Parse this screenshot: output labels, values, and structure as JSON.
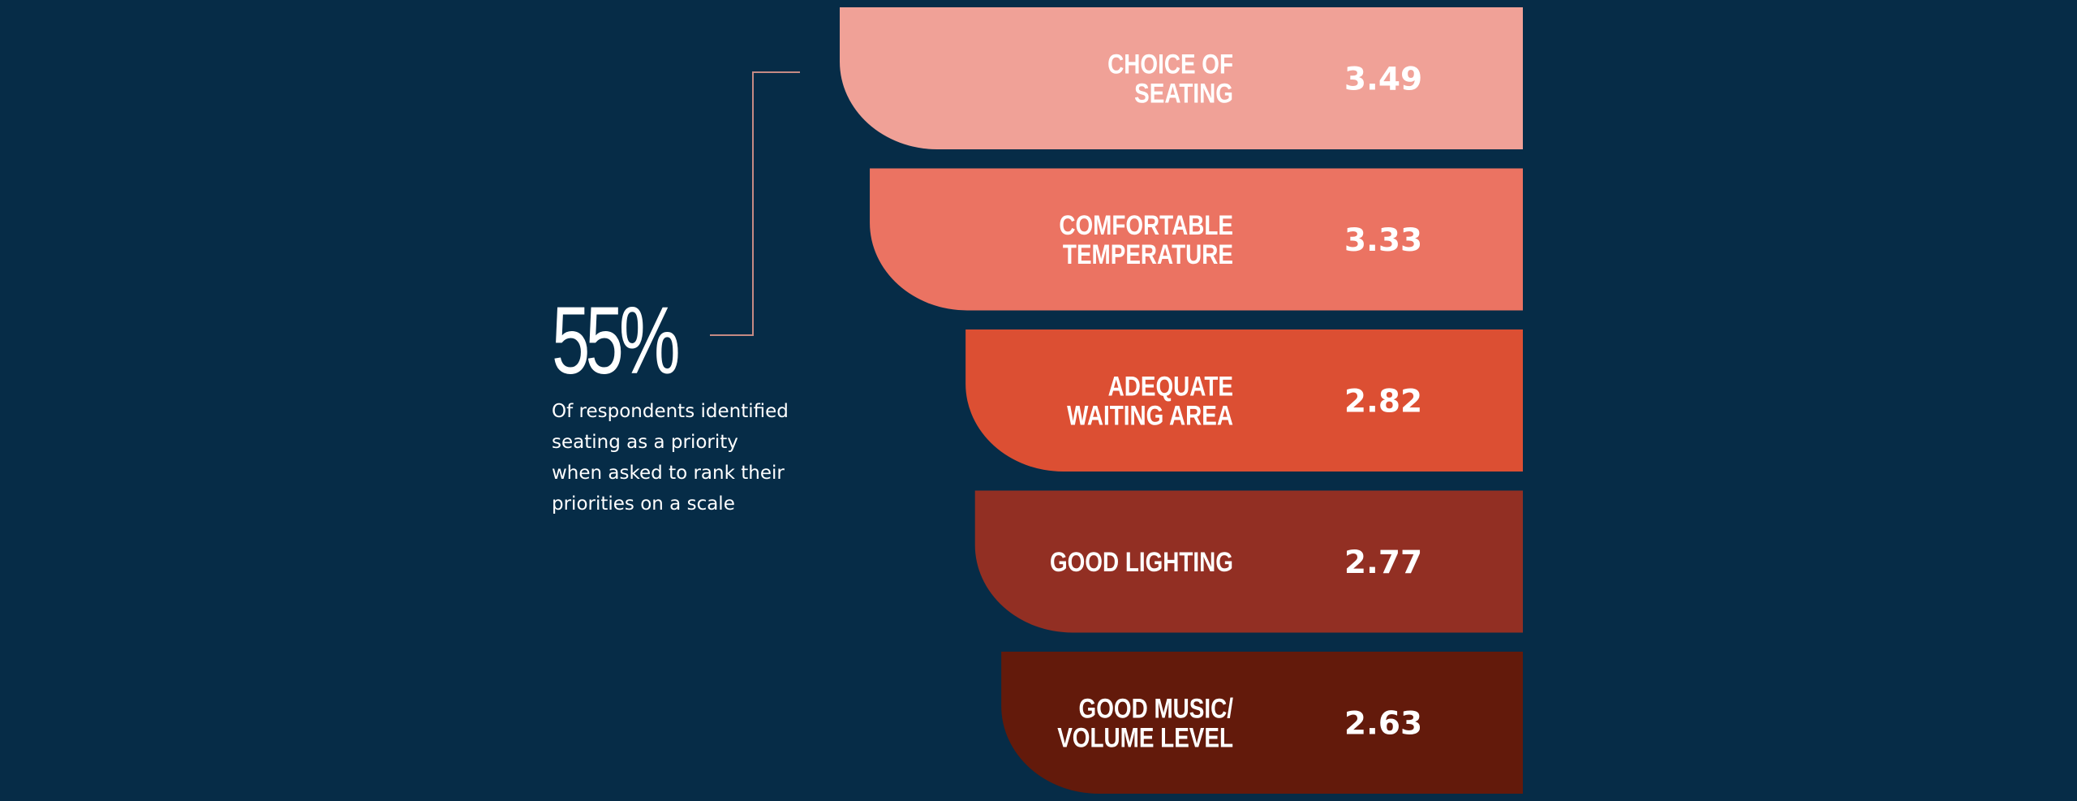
{
  "colors": {
    "background": "#062c47",
    "connector": "#c58a84"
  },
  "callout": {
    "percent": "55%",
    "caption_lines": [
      "Of respondents identified",
      "seating as a priority",
      "when asked to rank their",
      "priorities on a scale"
    ]
  },
  "chart_data": {
    "type": "bar",
    "categories": [
      [
        "CHOICE OF",
        "SEATING"
      ],
      [
        "COMFORTABLE",
        "TEMPERATURE"
      ],
      [
        "ADEQUATE",
        "WAITING AREA"
      ],
      [
        "GOOD LIGHTING"
      ],
      [
        "GOOD MUSIC/",
        "VOLUME LEVEL"
      ]
    ],
    "values": [
      3.49,
      3.33,
      2.82,
      2.77,
      2.63
    ],
    "value_labels": [
      "3.49",
      "3.33",
      "2.82",
      "2.77",
      "2.63"
    ],
    "colors": [
      "#f0a197",
      "#eb7362",
      "#dc4f33",
      "#922f23",
      "#631a0b"
    ],
    "title": "",
    "xlabel": "",
    "ylabel": ""
  }
}
